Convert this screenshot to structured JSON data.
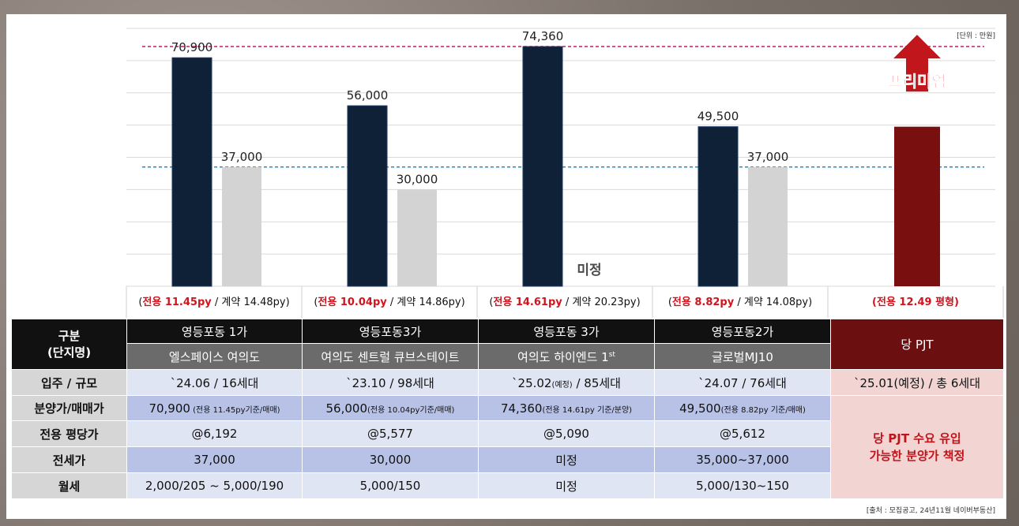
{
  "unit_label": "[단위 : 만원]",
  "source_label": "[출처 : 모집공고, 24년11월 네이버부동산]",
  "chart_data": {
    "type": "bar",
    "ylim": [
      0,
      80000
    ],
    "grid": true,
    "categories": [
      {
        "area_label": "전용 11.45py",
        "contract_label": " / 계약 14.48py)"
      },
      {
        "area_label": "전용 10.04py",
        "contract_label": " / 계약 14.86py)"
      },
      {
        "area_label": "전용 14.61py",
        "contract_label": " / 계약 20.23py)"
      },
      {
        "area_label": "전용 8.82py",
        "contract_label": " / 계약 14.08py)"
      },
      {
        "area_label": "(전용 12.49 평형)",
        "contract_label": ""
      }
    ],
    "series": [
      {
        "values": [
          70900,
          56000,
          74360,
          49500,
          null
        ],
        "labels": [
          "70,900",
          "56,000",
          "74,360",
          "49,500",
          ""
        ],
        "color": "#0f2137"
      },
      {
        "values": [
          37000,
          30000,
          null,
          37000,
          null
        ],
        "labels": [
          "37,000",
          "30,000",
          "",
          "37,000",
          ""
        ],
        "color": "#d3d3d3"
      }
    ],
    "our_bar": {
      "value": 49500,
      "color": "#7a0f10"
    },
    "reference_lines": [
      {
        "value": 74360,
        "color": "#c0186b"
      },
      {
        "value": 37000,
        "color": "#1b8fd1"
      }
    ],
    "undetermined_label": "미정",
    "premium_label": "프리미엄",
    "colors": {
      "accent_red": "#d0141d",
      "arrow_red": "#c0161c"
    }
  },
  "table": {
    "header_label": "구분",
    "header_sub": "(단지명)",
    "columns": [
      {
        "area": "영등포동 1가",
        "name": "엘스페이스 여의도"
      },
      {
        "area": "영등포동3가",
        "name": "여의도 센트럴 큐브스테이트"
      },
      {
        "area": "영등포동 3가",
        "name": "여의도 하이엔드 1",
        "name_sup": "st"
      },
      {
        "area": "영등포동2가",
        "name": "글로벌MJ10"
      }
    ],
    "our_project": "당 PJT",
    "rows": {
      "occupancy": {
        "label": "입주 / 규모",
        "cells": [
          "`24.06 / 16세대",
          "`23.10 / 98세대",
          "",
          "`24.07 / 76세대"
        ],
        "hi_pre": "`25.02",
        "hi_note": "(예정)",
        "hi_post": " / 85세대",
        "our": "`25.01(예정) / 총 6세대"
      },
      "price": {
        "label": "분양가/매매가",
        "cells": [
          {
            "main": "70,900",
            "note": " (전용 11.45py기준/매매)"
          },
          {
            "main": "56,000",
            "note": "(전용 10.04py기준/매매)"
          },
          {
            "main": "74,360",
            "note": "(전용 14.61py 기준/분양)"
          },
          {
            "main": "49,500",
            "note": "(전용 8.82py 기준/매매)"
          }
        ]
      },
      "per_pyeong": {
        "label": "전용 평당가",
        "cells": [
          "@6,192",
          "@5,577",
          "@5,090",
          "@5,612"
        ]
      },
      "jeonse": {
        "label": "전세가",
        "cells": [
          "37,000",
          "30,000",
          "미정",
          "35,000~37,000"
        ]
      },
      "monthly": {
        "label": "월세",
        "cells": [
          "2,000/205 ~ 5,000/190",
          "5,000/150",
          "미정",
          "5,000/130~150"
        ]
      },
      "our_note_line1": "당 PJT 수요 유입",
      "our_note_line2": "가능한 분양가 책정"
    }
  }
}
